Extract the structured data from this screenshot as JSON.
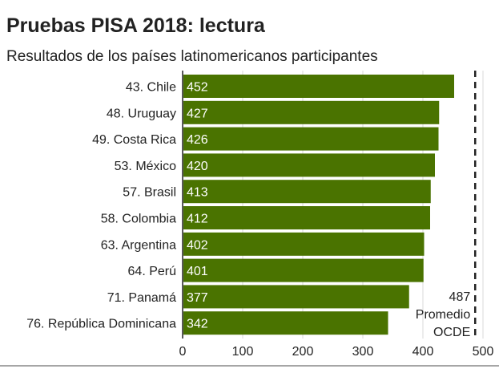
{
  "chart_data": {
    "type": "bar",
    "orientation": "horizontal",
    "title": "Pruebas PISA 2018: lectura",
    "subtitle": "Resultados de los países latinomericanos participantes",
    "categories": [
      "43. Chile",
      "48. Uruguay",
      "49. Costa Rica",
      "53. México",
      "57. Brasil",
      "58. Colombia",
      "63. Argentina",
      "64. Perú",
      "71. Panamá",
      "76. República Dominicana"
    ],
    "values": [
      452,
      427,
      426,
      420,
      413,
      412,
      402,
      401,
      377,
      342
    ],
    "xlim": [
      0,
      500
    ],
    "xticks": [
      0,
      100,
      200,
      300,
      400,
      500
    ],
    "grid": true,
    "bar_color": "#4a7300",
    "reference_line": {
      "value": 487,
      "label_value": "487",
      "label_lines": [
        "Promedio",
        "OCDE"
      ],
      "style": "dashed"
    }
  }
}
